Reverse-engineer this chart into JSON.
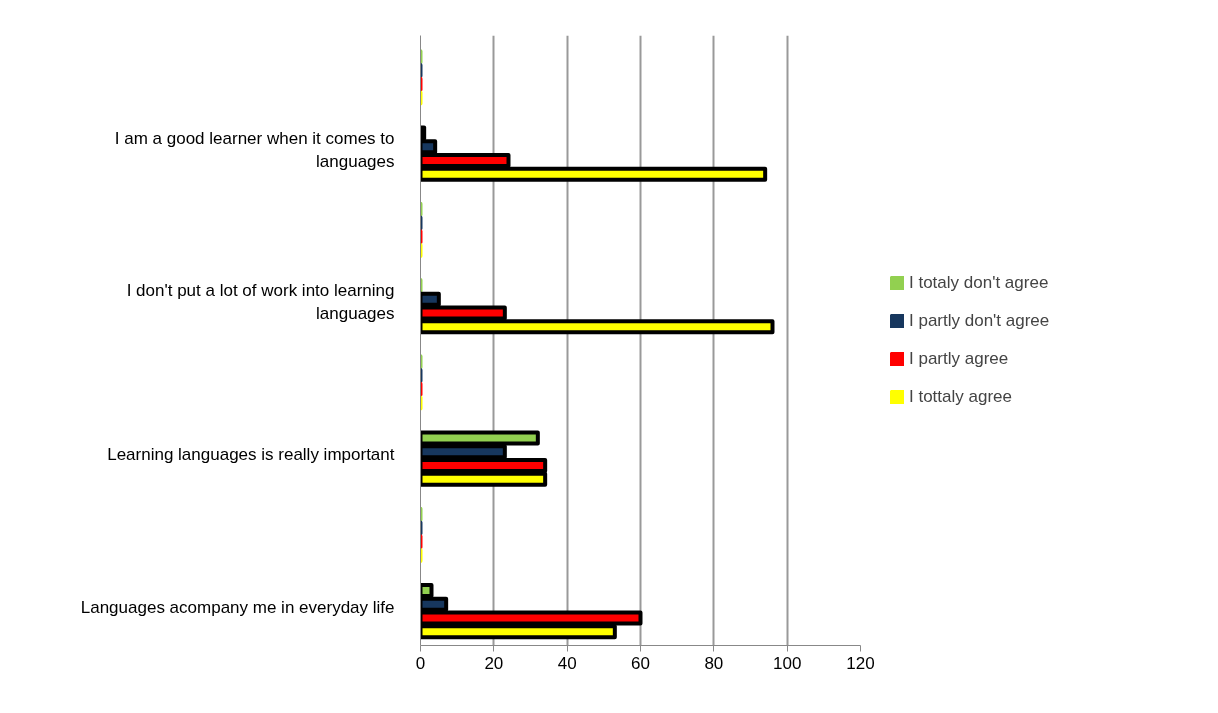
{
  "chart_data": {
    "type": "bar",
    "orientation": "horizontal",
    "categories": [
      null,
      "I am a good learner when it comes to languages",
      null,
      "I don't put a lot of work into learning languages",
      null,
      "Learning languages is really important",
      null,
      "Languages acompany me in everyday life"
    ],
    "series": [
      {
        "name": "I totaly don't agree",
        "color": "#92d050",
        "values": [
          0,
          1,
          0,
          0,
          0,
          32,
          0,
          3
        ]
      },
      {
        "name": "I partly don't agree",
        "color": "#17375e",
        "values": [
          0,
          4,
          0,
          5,
          0,
          23,
          0,
          7
        ]
      },
      {
        "name": "I partly agree",
        "color": "#ff0000",
        "values": [
          0,
          24,
          0,
          23,
          0,
          34,
          0,
          60
        ]
      },
      {
        "name": "I tottaly agree",
        "color": "#ffff00",
        "values": [
          0,
          94,
          0,
          96,
          0,
          34,
          0,
          53
        ]
      }
    ],
    "xlim": [
      0,
      120
    ],
    "xticks": [
      0,
      20,
      40,
      60,
      80,
      100,
      120
    ],
    "grid": "x",
    "legend": "right"
  }
}
